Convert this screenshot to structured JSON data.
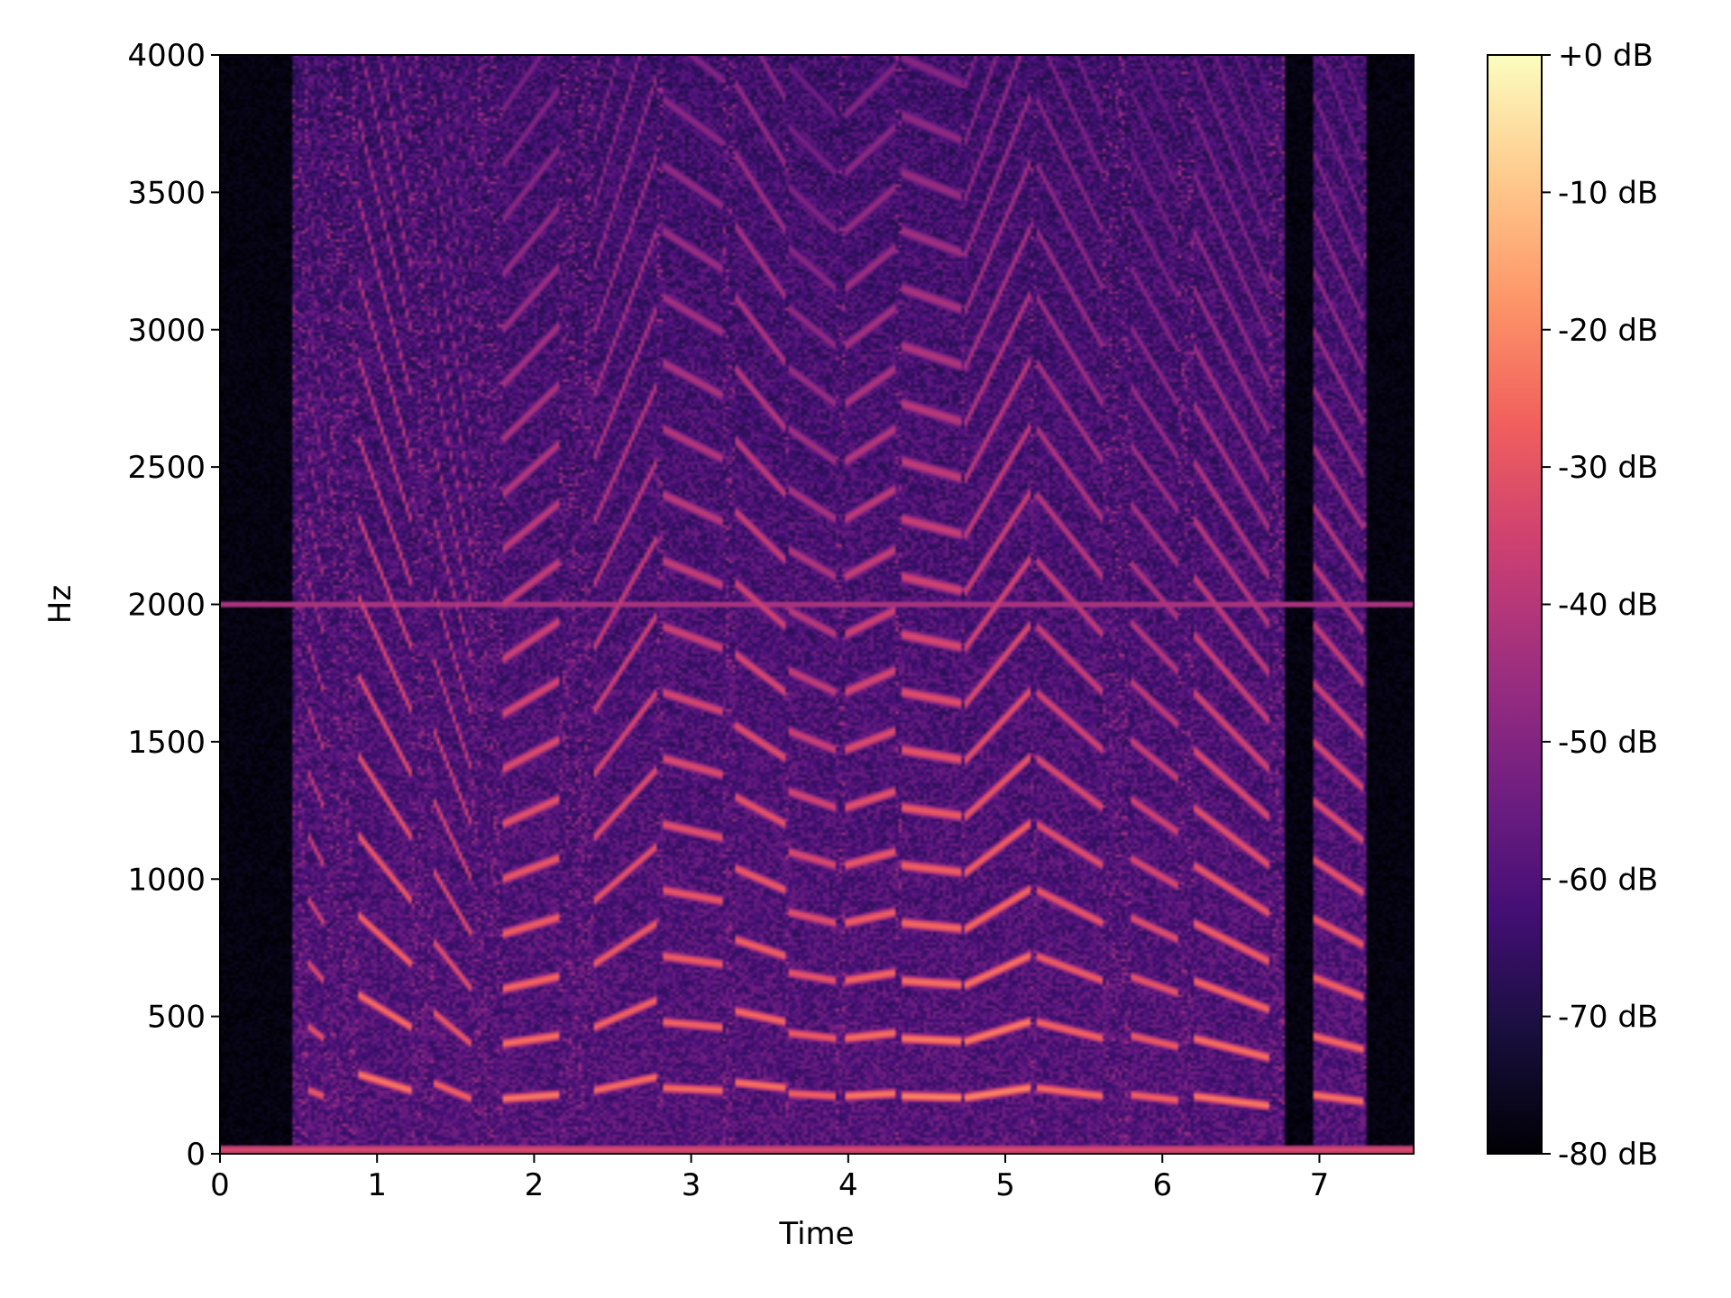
{
  "chart_data": {
    "type": "heatmap",
    "title": "",
    "xlabel": "Time",
    "ylabel": "Hz",
    "xlim": [
      0,
      7.6
    ],
    "ylim": [
      0,
      4000
    ],
    "x_ticks": [
      0,
      1,
      2,
      3,
      4,
      5,
      6,
      7
    ],
    "x_tick_labels": [
      "0",
      "1",
      "2",
      "3",
      "4",
      "5",
      "6",
      "7"
    ],
    "y_ticks": [
      0,
      500,
      1000,
      1500,
      2000,
      2500,
      3000,
      3500,
      4000
    ],
    "y_tick_labels": [
      "0",
      "500",
      "1000",
      "1500",
      "2000",
      "2500",
      "3000",
      "3500",
      "4000"
    ],
    "colorbar": {
      "ticks": [
        0,
        -10,
        -20,
        -30,
        -40,
        -50,
        -60,
        -70,
        -80
      ],
      "tick_labels": [
        "+0 dB",
        "-10 dB",
        "-20 dB",
        "-30 dB",
        "-40 dB",
        "-50 dB",
        "-60 dB",
        "-70 dB",
        "-80 dB"
      ],
      "range": [
        -80,
        0
      ],
      "colormap": "magma",
      "stops": [
        "#000004",
        "#180f3d",
        "#440f76",
        "#721f81",
        "#9e2f7f",
        "#cd4071",
        "#f1605d",
        "#fd9668",
        "#feca8d",
        "#fcfdbf"
      ]
    },
    "grid": false,
    "background_db": -80,
    "steady_tones": [
      {
        "hz": 2000,
        "db": -40,
        "x_range": [
          0,
          7.6
        ]
      },
      {
        "hz": 15,
        "db": -32,
        "x_range": [
          0,
          7.6
        ]
      }
    ],
    "voiced_segments": [
      {
        "x_start": 0.57,
        "x_end": 0.66,
        "f0_start": 230,
        "f0_end": 210,
        "db": -28
      },
      {
        "x_start": 0.88,
        "x_end": 1.22,
        "f0_start": 290,
        "f0_end": 230,
        "db": -22
      },
      {
        "x_start": 1.35,
        "x_end": 1.6,
        "f0_start": 260,
        "f0_end": 200,
        "db": -26
      },
      {
        "x_start": 1.8,
        "x_end": 2.15,
        "f0_start": 200,
        "f0_end": 215,
        "db": -22
      },
      {
        "x_start": 2.38,
        "x_end": 2.78,
        "f0_start": 230,
        "f0_end": 280,
        "db": -24
      },
      {
        "x_start": 2.82,
        "x_end": 3.2,
        "f0_start": 240,
        "f0_end": 230,
        "db": -24
      },
      {
        "x_start": 3.28,
        "x_end": 3.6,
        "f0_start": 260,
        "f0_end": 240,
        "db": -23
      },
      {
        "x_start": 3.62,
        "x_end": 3.92,
        "f0_start": 220,
        "f0_end": 210,
        "db": -26
      },
      {
        "x_start": 3.98,
        "x_end": 4.3,
        "f0_start": 210,
        "f0_end": 220,
        "db": -22
      },
      {
        "x_start": 4.35,
        "x_end": 4.72,
        "f0_start": 210,
        "f0_end": 205,
        "db": -20
      },
      {
        "x_start": 4.75,
        "x_end": 5.15,
        "f0_start": 205,
        "f0_end": 240,
        "db": -20
      },
      {
        "x_start": 5.2,
        "x_end": 5.62,
        "f0_start": 240,
        "f0_end": 210,
        "db": -24
      },
      {
        "x_start": 5.8,
        "x_end": 6.1,
        "f0_start": 215,
        "f0_end": 195,
        "db": -26
      },
      {
        "x_start": 6.2,
        "x_end": 6.68,
        "f0_start": 210,
        "f0_end": 175,
        "db": -22
      },
      {
        "x_start": 6.95,
        "x_end": 7.28,
        "f0_start": 215,
        "f0_end": 190,
        "db": -23
      }
    ],
    "silent_regions": [
      {
        "x_start": 0.0,
        "x_end": 0.45
      },
      {
        "x_start": 6.78,
        "x_end": 6.95
      },
      {
        "x_start": 7.3,
        "x_end": 7.6
      }
    ]
  }
}
